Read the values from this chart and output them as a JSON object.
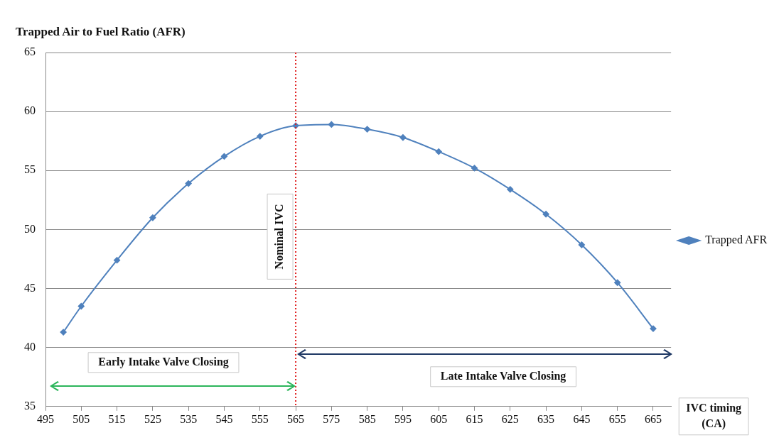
{
  "chart_data": {
    "type": "line",
    "title": "Trapped Air to Fuel Ratio (AFR)",
    "xlabel": "IVC timing (CA)",
    "x": [
      500,
      505,
      515,
      525,
      535,
      545,
      555,
      565,
      575,
      585,
      595,
      605,
      615,
      625,
      635,
      645,
      655,
      665
    ],
    "series": [
      {
        "name": "Trapped AFR",
        "color": "#4f81bd",
        "values": [
          41.3,
          43.5,
          47.4,
          51.0,
          53.9,
          56.2,
          57.9,
          58.8,
          58.9,
          58.5,
          57.8,
          56.6,
          55.2,
          53.4,
          51.3,
          48.7,
          45.5,
          41.6
        ]
      }
    ],
    "xlim": [
      495,
      670
    ],
    "xticks": [
      495,
      505,
      515,
      525,
      535,
      545,
      555,
      565,
      575,
      585,
      595,
      605,
      615,
      625,
      635,
      645,
      655,
      665
    ],
    "ylim": [
      35,
      65
    ],
    "yticks": [
      35,
      40,
      45,
      50,
      55,
      60,
      65
    ],
    "ref_lines": [
      {
        "axis": "x",
        "value": 565,
        "label": "Nominal IVC",
        "color": "#e02020",
        "line_style": "dotted"
      }
    ],
    "annotations": [
      "Early Intake Valve Closing",
      "Late Intake Valve Closing"
    ],
    "grid": "y",
    "legend": "right",
    "marker": "diamond",
    "line_style": "solid"
  }
}
